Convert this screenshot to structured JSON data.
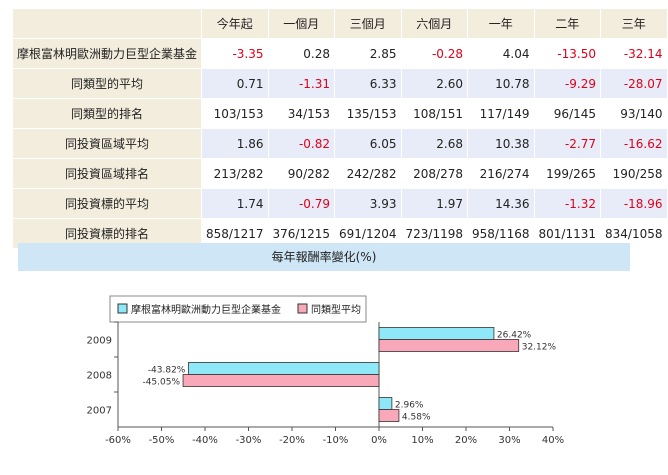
{
  "table": {
    "columns": [
      "今年起",
      "一個月",
      "三個月",
      "六個月",
      "一年",
      "二年",
      "三年"
    ],
    "rows": [
      {
        "label": "摩根富林明歐洲動力巨型企業基金",
        "values": [
          "-3.35",
          "0.28",
          "2.85",
          "-0.28",
          "4.04",
          "-13.50",
          "-32.14"
        ]
      },
      {
        "label": "同類型的平均",
        "values": [
          "0.71",
          "-1.31",
          "6.33",
          "2.60",
          "10.78",
          "-9.29",
          "-28.07"
        ]
      },
      {
        "label": "同類型的排名",
        "values": [
          "103/153",
          "34/153",
          "135/153",
          "108/151",
          "117/149",
          "96/145",
          "93/140"
        ]
      },
      {
        "label": "同投資區域平均",
        "values": [
          "1.86",
          "-0.82",
          "6.05",
          "2.68",
          "10.38",
          "-2.77",
          "-16.62"
        ]
      },
      {
        "label": "同投資區域排名",
        "values": [
          "213/282",
          "90/282",
          "242/282",
          "208/278",
          "216/274",
          "199/265",
          "190/258"
        ]
      },
      {
        "label": "同投資標的平均",
        "values": [
          "1.74",
          "-0.79",
          "3.93",
          "1.97",
          "14.36",
          "-1.32",
          "-18.96"
        ]
      },
      {
        "label": "同投資標的排名",
        "values": [
          "858/1217",
          "376/1215",
          "691/1204",
          "723/1198",
          "958/1168",
          "801/1131",
          "834/1058"
        ]
      }
    ]
  },
  "banner": {
    "title": "每年報酬率變化(%)"
  },
  "chart_data": {
    "type": "bar",
    "orientation": "horizontal",
    "categories": [
      "2009",
      "2008",
      "2007"
    ],
    "series": [
      {
        "name": "摩根富林明歐洲動力巨型企業基金",
        "color": "#8ee8f8",
        "values": [
          26.42,
          -43.82,
          2.96
        ],
        "labels": [
          "26.42%",
          "-43.82%",
          "2.96%"
        ]
      },
      {
        "name": "同類型平均",
        "color": "#f8a8b8",
        "values": [
          32.12,
          -45.05,
          4.58
        ],
        "labels": [
          "32.12%",
          "-45.05%",
          "4.58%"
        ]
      }
    ],
    "xlim": [
      -60,
      40
    ],
    "xticks": [
      "-60%",
      "-50%",
      "-40%",
      "-30%",
      "-20%",
      "-10%",
      "0%",
      "10%",
      "20%",
      "30%",
      "40%"
    ],
    "legend": "top"
  }
}
